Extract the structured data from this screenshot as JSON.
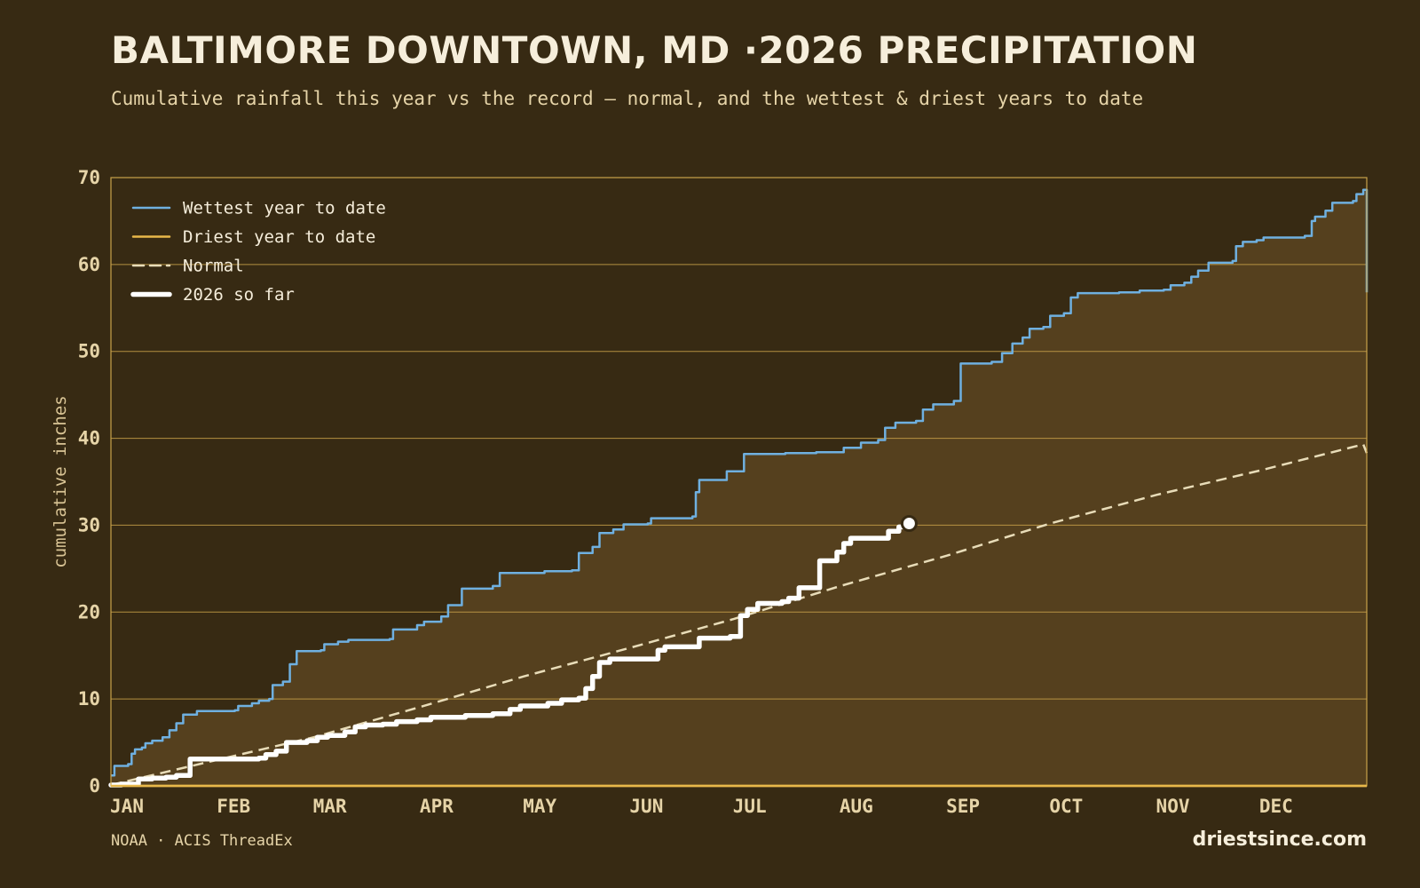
{
  "header": {
    "title": "BALTIMORE DOWNTOWN, MD ·2026 PRECIPITATION",
    "subtitle": "Cumulative rainfall this year vs the record — normal, and the wettest & driest years to date"
  },
  "footer": {
    "source": "NOAA · ACIS ThreadEx",
    "site": "driestsince.com"
  },
  "colors": {
    "background": "#372a13",
    "fill": "#55401e",
    "gridline": "#c9a24a",
    "wettest": "#6fb0e0",
    "driest": "#e8b84a",
    "normal": "#e8dcb8",
    "current": "#ffffff"
  },
  "chart_data": {
    "type": "line",
    "title": "",
    "xlabel": "",
    "ylabel": "cumulative inches",
    "x_unit": "day of year",
    "xlim": [
      1,
      366
    ],
    "ylim": [
      0,
      70
    ],
    "y_ticks": [
      0,
      10,
      20,
      30,
      40,
      50,
      60,
      70
    ],
    "x_tick_labels": [
      {
        "label": "JAN",
        "x": 1
      },
      {
        "label": "FEB",
        "x": 32
      },
      {
        "label": "MAR",
        "x": 60
      },
      {
        "label": "APR",
        "x": 91
      },
      {
        "label": "MAY",
        "x": 121
      },
      {
        "label": "JUN",
        "x": 152
      },
      {
        "label": "JUL",
        "x": 182
      },
      {
        "label": "AUG",
        "x": 213
      },
      {
        "label": "SEP",
        "x": 244
      },
      {
        "label": "OCT",
        "x": 274
      },
      {
        "label": "NOV",
        "x": 305
      },
      {
        "label": "DEC",
        "x": 335
      }
    ],
    "grid": true,
    "legend": {
      "position": "top-left"
    },
    "series": [
      {
        "name": "Wettest year to date",
        "color": "#6fb0e0",
        "style": "step",
        "points": [
          [
            1,
            1.2
          ],
          [
            2,
            2.3
          ],
          [
            6,
            2.5
          ],
          [
            7,
            3.7
          ],
          [
            8,
            4.2
          ],
          [
            10,
            4.4
          ],
          [
            11,
            4.9
          ],
          [
            13,
            5.2
          ],
          [
            16,
            5.6
          ],
          [
            18,
            6.4
          ],
          [
            20,
            7.2
          ],
          [
            22,
            8.2
          ],
          [
            26,
            8.6
          ],
          [
            37,
            8.7
          ],
          [
            38,
            9.2
          ],
          [
            42,
            9.5
          ],
          [
            44,
            9.8
          ],
          [
            47,
            10.0
          ],
          [
            48,
            11.6
          ],
          [
            51,
            12.0
          ],
          [
            53,
            14.0
          ],
          [
            55,
            15.5
          ],
          [
            62,
            15.6
          ],
          [
            63,
            16.3
          ],
          [
            67,
            16.6
          ],
          [
            70,
            16.8
          ],
          [
            82,
            16.9
          ],
          [
            83,
            18.0
          ],
          [
            90,
            18.5
          ],
          [
            92,
            18.9
          ],
          [
            97,
            19.5
          ],
          [
            99,
            20.8
          ],
          [
            103,
            22.7
          ],
          [
            112,
            23.0
          ],
          [
            114,
            24.5
          ],
          [
            127,
            24.7
          ],
          [
            135,
            24.8
          ],
          [
            137,
            26.8
          ],
          [
            141,
            27.5
          ],
          [
            143,
            29.1
          ],
          [
            147,
            29.5
          ],
          [
            150,
            30.1
          ],
          [
            157,
            30.2
          ],
          [
            158,
            30.8
          ],
          [
            170,
            31.0
          ],
          [
            171,
            33.8
          ],
          [
            172,
            35.2
          ],
          [
            180,
            36.2
          ],
          [
            185,
            38.2
          ],
          [
            197,
            38.3
          ],
          [
            206,
            38.4
          ],
          [
            214,
            38.9
          ],
          [
            219,
            39.5
          ],
          [
            224,
            39.8
          ],
          [
            226,
            41.2
          ],
          [
            229,
            41.8
          ],
          [
            235,
            42.0
          ],
          [
            237,
            43.3
          ],
          [
            240,
            43.9
          ],
          [
            246,
            44.3
          ],
          [
            248,
            48.6
          ],
          [
            257,
            48.8
          ],
          [
            260,
            49.8
          ],
          [
            263,
            50.9
          ],
          [
            266,
            51.6
          ],
          [
            268,
            52.6
          ],
          [
            272,
            52.8
          ],
          [
            274,
            54.1
          ],
          [
            278,
            54.4
          ],
          [
            280,
            56.2
          ],
          [
            282,
            56.7
          ],
          [
            294,
            56.8
          ],
          [
            300,
            57.0
          ],
          [
            307,
            57.1
          ],
          [
            309,
            57.6
          ],
          [
            313,
            57.9
          ],
          [
            315,
            58.6
          ],
          [
            317,
            59.3
          ],
          [
            320,
            60.2
          ],
          [
            327,
            60.4
          ],
          [
            328,
            62.1
          ],
          [
            330,
            62.6
          ],
          [
            334,
            62.8
          ],
          [
            336,
            63.1
          ],
          [
            348,
            63.3
          ],
          [
            350,
            65.0
          ],
          [
            351,
            65.5
          ],
          [
            354,
            66.2
          ],
          [
            356,
            67.1
          ],
          [
            362,
            67.3
          ],
          [
            363,
            68.1
          ],
          [
            365,
            68.6
          ],
          [
            366,
            56.8
          ]
        ]
      },
      {
        "name": "Driest year to date",
        "color": "#e8b84a",
        "style": "step",
        "points": [
          [
            1,
            0
          ],
          [
            366,
            0
          ]
        ]
      },
      {
        "name": "Normal",
        "color": "#e8dcb8",
        "style": "dashed",
        "points": [
          [
            1,
            0.1
          ],
          [
            32,
            3.0
          ],
          [
            60,
            5.6
          ],
          [
            91,
            9.1
          ],
          [
            121,
            12.6
          ],
          [
            152,
            15.9
          ],
          [
            182,
            19.2
          ],
          [
            213,
            23.0
          ],
          [
            244,
            26.5
          ],
          [
            274,
            30.2
          ],
          [
            305,
            33.5
          ],
          [
            335,
            36.3
          ],
          [
            365,
            39.3
          ],
          [
            366,
            38.3
          ]
        ]
      },
      {
        "name": "2026 so far",
        "color": "#ffffff",
        "style": "step",
        "end_marker": true,
        "points": [
          [
            1,
            0.1
          ],
          [
            4,
            0.2
          ],
          [
            9,
            0.8
          ],
          [
            13,
            0.9
          ],
          [
            17,
            1.0
          ],
          [
            20,
            1.2
          ],
          [
            24,
            3.1
          ],
          [
            44,
            3.2
          ],
          [
            46,
            3.6
          ],
          [
            49,
            4.0
          ],
          [
            52,
            5.0
          ],
          [
            58,
            5.2
          ],
          [
            61,
            5.6
          ],
          [
            64,
            5.8
          ],
          [
            69,
            6.2
          ],
          [
            72,
            6.8
          ],
          [
            75,
            7.0
          ],
          [
            80,
            7.1
          ],
          [
            84,
            7.4
          ],
          [
            90,
            7.6
          ],
          [
            94,
            7.9
          ],
          [
            104,
            8.1
          ],
          [
            112,
            8.3
          ],
          [
            117,
            8.8
          ],
          [
            120,
            9.2
          ],
          [
            128,
            9.5
          ],
          [
            132,
            9.9
          ],
          [
            137,
            10.1
          ],
          [
            139,
            11.2
          ],
          [
            141,
            12.6
          ],
          [
            143,
            14.2
          ],
          [
            146,
            14.6
          ],
          [
            160,
            15.6
          ],
          [
            162,
            16.0
          ],
          [
            172,
            17.0
          ],
          [
            181,
            17.2
          ],
          [
            184,
            19.6
          ],
          [
            186,
            20.3
          ],
          [
            189,
            21.0
          ],
          [
            196,
            21.2
          ],
          [
            198,
            21.6
          ],
          [
            201,
            22.8
          ],
          [
            207,
            25.9
          ],
          [
            212,
            26.9
          ],
          [
            214,
            27.9
          ],
          [
            216,
            28.5
          ],
          [
            227,
            29.3
          ],
          [
            230,
            29.8
          ],
          [
            232,
            30.0
          ],
          [
            233,
            30.2
          ]
        ]
      }
    ]
  }
}
